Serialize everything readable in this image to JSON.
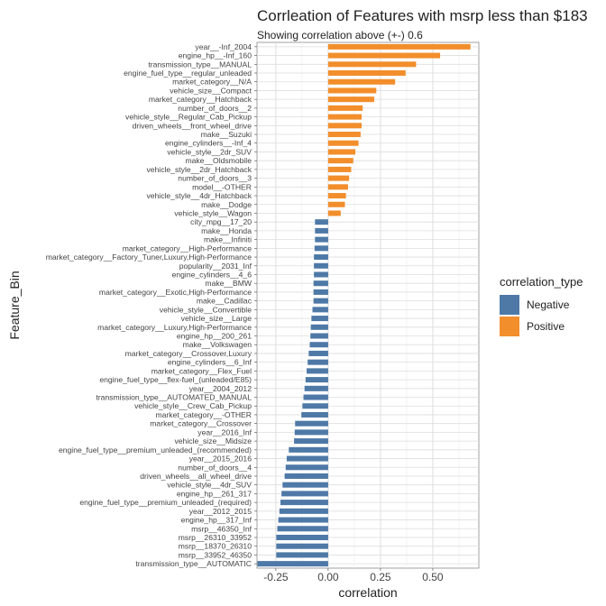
{
  "chart_data": {
    "type": "bar",
    "orientation": "horizontal",
    "title": "Corrleation of Features with msrp less than $183",
    "subtitle": "Showing correlation above (+-) 0.6",
    "xlabel": "correlation",
    "ylabel": "Feature_Bin",
    "xlim": [
      -0.34,
      0.72
    ],
    "xticks": [
      -0.25,
      0.0,
      0.25,
      0.5
    ],
    "xtick_labels": [
      "-0.25",
      "0.00",
      "0.25",
      "0.50"
    ],
    "grid": true,
    "legend_title": "correlation_type",
    "legend_position": "right",
    "legend": [
      {
        "name": "Negative",
        "color": "#4E79A7"
      },
      {
        "name": "Positive",
        "color": "#F28E2B"
      }
    ],
    "categories": [
      "year__-Inf_2004",
      "engine_hp__-Inf_160",
      "transmission_type__MANUAL",
      "engine_fuel_type__regular_unleaded",
      "market_category__N/A",
      "vehicle_size__Compact",
      "market_category__Hatchback",
      "number_of_doors__2",
      "vehicle_style__Regular_Cab_Pickup",
      "driven_wheels__front_wheel_drive",
      "make__Suzuki",
      "engine_cylinders__-Inf_4",
      "vehicle_style__2dr_SUV",
      "make__Oldsmobile",
      "vehicle_style__2dr_Hatchback",
      "number_of_doors__3",
      "model__-OTHER",
      "vehicle_style__4dr_Hatchback",
      "make__Dodge",
      "vehicle_style__Wagon",
      "city_mpg__17_20",
      "make__Honda",
      "make__Infiniti",
      "market_category__High-Performance",
      "market_category__Factory_Tuner,Luxury,High-Performance",
      "popularity__2031_Inf",
      "engine_cylinders__4_6",
      "make__BMW",
      "market_category__Exotic,High-Performance",
      "make__Cadillac",
      "vehicle_style__Convertible",
      "vehicle_size__Large",
      "market_category__Luxury,High-Performance",
      "engine_hp__200_261",
      "make__Volkswagen",
      "market_category__Crossover,Luxury",
      "engine_cylinders__6_Inf",
      "market_category__Flex_Fuel",
      "engine_fuel_type__flex-fuel_(unleaded/E85)",
      "year__2004_2012",
      "transmission_type__AUTOMATED_MANUAL",
      "vehicle_style__Crew_Cab_Pickup",
      "market_category__-OTHER",
      "market_category__Crossover",
      "year__2016_Inf",
      "vehicle_size__Midsize",
      "engine_fuel_type__premium_unleaded_(recommended)",
      "year__2015_2016",
      "number_of_doors__4",
      "driven_wheels__all_wheel_drive",
      "vehicle_style__4dr_SUV",
      "engine_hp__261_317",
      "engine_fuel_type__premium_unleaded_(required)",
      "year__2012_2015",
      "engine_hp__317_Inf",
      "msrp__46350_Inf",
      "msrp__26310_33952",
      "msrp__18370_26310",
      "msrp__33952_46350",
      "transmission_type__AUTOMATIC"
    ],
    "values": [
      0.68,
      0.535,
      0.42,
      0.37,
      0.32,
      0.23,
      0.22,
      0.165,
      0.16,
      0.16,
      0.155,
      0.145,
      0.13,
      0.12,
      0.11,
      0.1,
      0.095,
      0.085,
      0.08,
      0.06,
      -0.063,
      -0.063,
      -0.063,
      -0.065,
      -0.068,
      -0.068,
      -0.068,
      -0.07,
      -0.07,
      -0.07,
      -0.075,
      -0.08,
      -0.083,
      -0.085,
      -0.088,
      -0.093,
      -0.098,
      -0.103,
      -0.108,
      -0.113,
      -0.118,
      -0.123,
      -0.128,
      -0.158,
      -0.16,
      -0.163,
      -0.188,
      -0.198,
      -0.203,
      -0.208,
      -0.218,
      -0.223,
      -0.228,
      -0.233,
      -0.238,
      -0.243,
      -0.248,
      -0.248,
      -0.248,
      -0.338
    ]
  }
}
